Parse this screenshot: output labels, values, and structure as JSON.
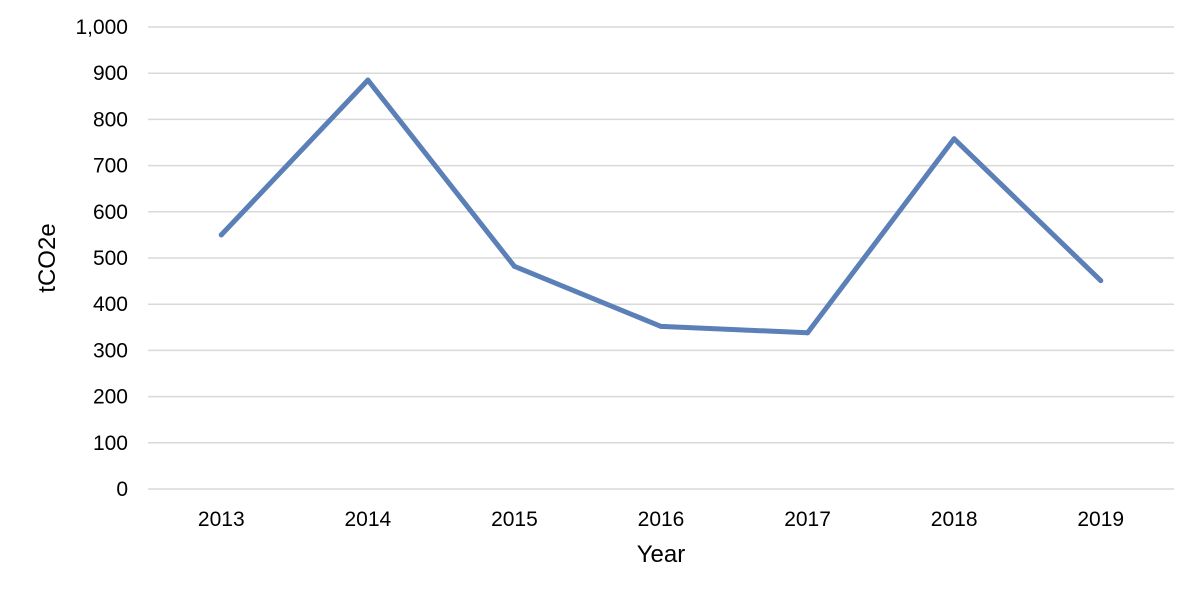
{
  "chart_data": {
    "type": "line",
    "title": "",
    "xlabel": "Year",
    "ylabel": "tCO2e",
    "categories": [
      "2013",
      "2014",
      "2015",
      "2016",
      "2017",
      "2018",
      "2019"
    ],
    "series": [
      {
        "color": "#5b7fb7",
        "values": [
          550,
          885,
          482,
          352,
          338,
          758,
          451
        ]
      }
    ],
    "ylim": [
      0,
      1000
    ],
    "yticks": [
      0,
      100,
      200,
      300,
      400,
      500,
      600,
      700,
      800,
      900,
      1000
    ],
    "ytick_labels": [
      "0",
      "100",
      "200",
      "300",
      "400",
      "500",
      "600",
      "700",
      "800",
      "900",
      "1,000"
    ],
    "grid": true,
    "legend": "none"
  }
}
